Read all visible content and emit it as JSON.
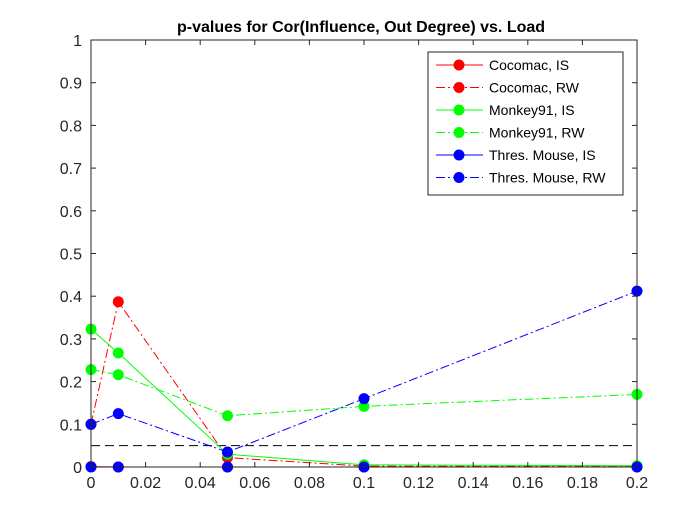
{
  "chart_data": {
    "type": "line",
    "title": "p-values for Cor(Influence, Out Degree) vs. Load",
    "xlabel": "",
    "ylabel": "",
    "xlim": [
      0,
      0.2
    ],
    "ylim": [
      0,
      1
    ],
    "xticks": [
      0,
      0.02,
      0.04,
      0.06,
      0.08,
      0.1,
      0.12,
      0.14,
      0.16,
      0.18,
      0.2
    ],
    "xtick_labels": [
      "0",
      "0.02",
      "0.04",
      "0.06",
      "0.08",
      "0.1",
      "0.12",
      "0.14",
      "0.16",
      "0.18",
      "0.2"
    ],
    "yticks": [
      0,
      0.1,
      0.2,
      0.3,
      0.4,
      0.5,
      0.6,
      0.7,
      0.8,
      0.9,
      1
    ],
    "ytick_labels": [
      "0",
      "0.1",
      "0.2",
      "0.3",
      "0.4",
      "0.5",
      "0.6",
      "0.7",
      "0.8",
      "0.9",
      "1"
    ],
    "grid": false,
    "legend_position": "top-right",
    "x": [
      0,
      0.01,
      0.05,
      0.1,
      0.2
    ],
    "series": [
      {
        "name": "Cocomac, IS",
        "color": "#ff0000",
        "line_style": "solid",
        "values": [
          0.001,
          0.0,
          0.0,
          0.0,
          0.0
        ]
      },
      {
        "name": "Cocomac, RW",
        "color": "#ff0000",
        "line_style": "dashdot",
        "values": [
          0.1,
          0.387,
          0.022,
          0.002,
          0.001
        ]
      },
      {
        "name": "Monkey91, IS",
        "color": "#00ff00",
        "line_style": "solid",
        "values": [
          0.323,
          0.267,
          0.03,
          0.005,
          0.003
        ]
      },
      {
        "name": "Monkey91, RW",
        "color": "#00ff00",
        "line_style": "dashdot",
        "values": [
          0.228,
          0.216,
          0.12,
          0.142,
          0.17
        ]
      },
      {
        "name": "Thres. Mouse, IS",
        "color": "#0000ff",
        "line_style": "solid",
        "values": [
          0.0,
          0.0,
          0.0,
          0.0,
          0.0
        ]
      },
      {
        "name": "Thres. Mouse, RW",
        "color": "#0000ff",
        "line_style": "dashdot",
        "values": [
          0.1,
          0.125,
          0.035,
          0.16,
          0.412
        ]
      }
    ],
    "reference_line": {
      "y": 0.05,
      "color": "#000000",
      "line_style": "dashed"
    }
  }
}
